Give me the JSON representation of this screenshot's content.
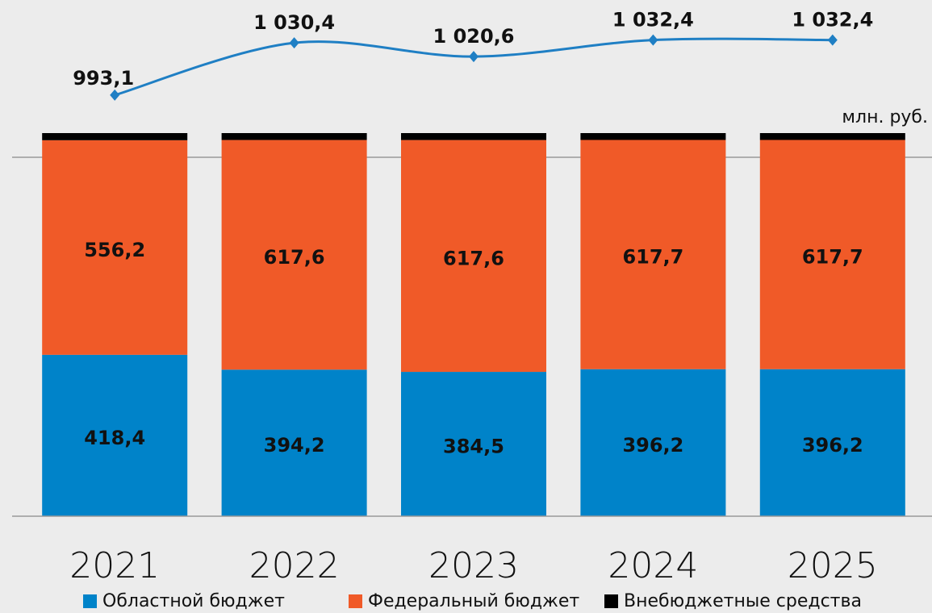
{
  "chart_data": {
    "type": "bar",
    "stacked": "percent",
    "unit_label": "млн. руб.",
    "categories": [
      "2021",
      "2022",
      "2023",
      "2024",
      "2025"
    ],
    "series": [
      {
        "name": "Областной бюджет",
        "color": "#0083c9",
        "values": [
          418.4,
          394.2,
          384.5,
          396.2,
          396.2
        ],
        "value_labels": [
          "418,4",
          "394,2",
          "384,5",
          "396,2",
          "396,2"
        ]
      },
      {
        "name": "Федеральный бюджет",
        "color": "#f05a28",
        "values": [
          556.2,
          617.6,
          617.6,
          617.7,
          617.7
        ],
        "value_labels": [
          "556,2",
          "617,6",
          "617,6",
          "617,7",
          "617,7"
        ]
      },
      {
        "name": "Внебюджетные средства",
        "color": "#000000",
        "values": [
          18.5,
          18.6,
          18.5,
          18.5,
          18.5
        ]
      },
      {
        "type": "line",
        "axis": "y2",
        "color": "#1f7fc4",
        "values": [
          993.1,
          1030.4,
          1020.6,
          1032.4,
          1032.4
        ],
        "value_labels": [
          "993,1",
          "1 030,4",
          "1 020,6",
          "1 032,4",
          "1 032,4"
        ]
      }
    ],
    "y2lim": [
      966,
      1061
    ]
  }
}
